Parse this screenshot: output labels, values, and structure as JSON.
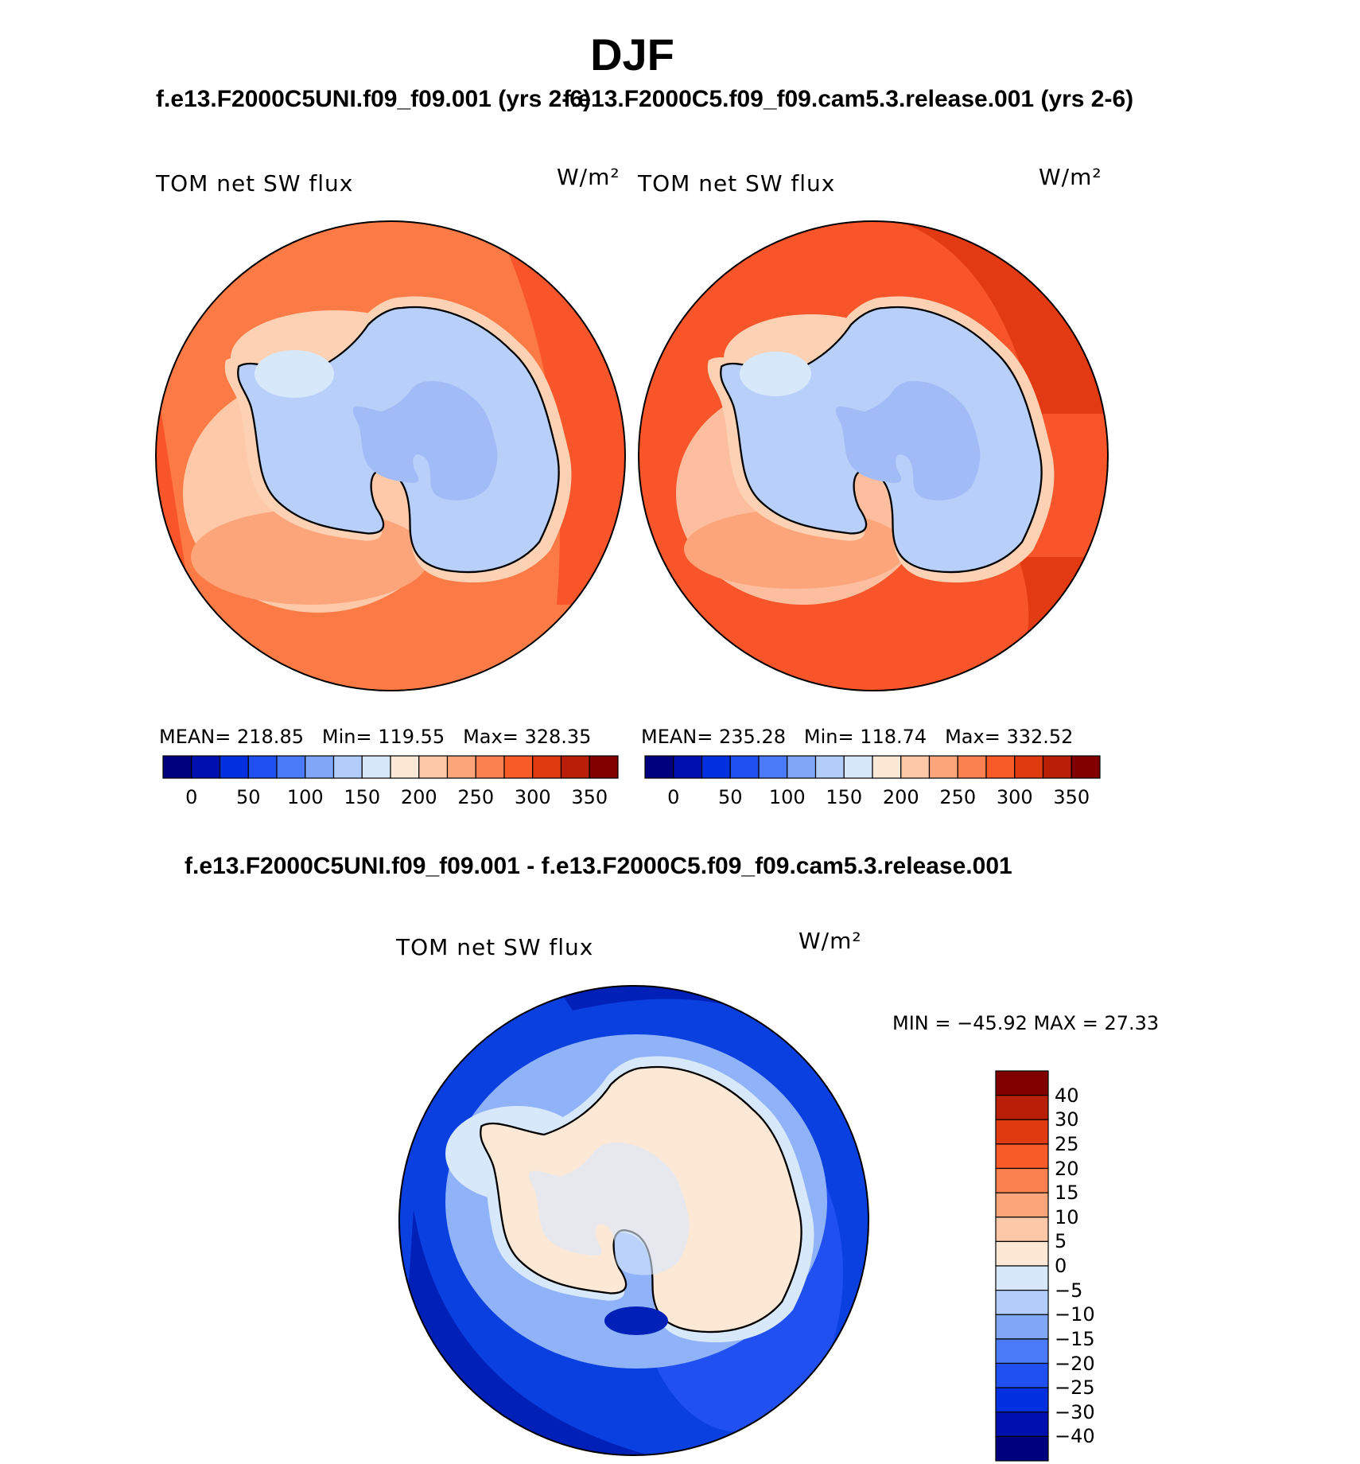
{
  "season_title": "DJF",
  "panels": [
    {
      "case": "f.e13.F2000C5UNI.f09_f09.001 (yrs 2-6)",
      "variable": "TOM net SW flux",
      "units": "W/m²",
      "mean_label": "MEAN=",
      "mean": "218.85",
      "min_label": "Min=",
      "min": "119.55",
      "max_label": "Max=",
      "max": "328.35"
    },
    {
      "case": "f.e13.F2000C5.f09_f09.cam5.3.release.001 (yrs 2-6)",
      "variable": "TOM net SW flux",
      "units": "W/m²",
      "mean_label": "MEAN=",
      "mean": "235.28",
      "min_label": "Min=",
      "min": "118.74",
      "max_label": "Max=",
      "max": "332.52"
    }
  ],
  "difference": {
    "title": "f.e13.F2000C5UNI.f09_f09.001 - f.e13.F2000C5.f09_f09.cam5.3.release.001",
    "variable": "TOM net SW flux",
    "units": "W/m²",
    "minmax_text": "MIN = −45.92 MAX =  27.33"
  },
  "colorbar_abs": {
    "ticks": [
      "0",
      "50",
      "100",
      "150",
      "200",
      "250",
      "300",
      "350"
    ],
    "colors": [
      "#00007f",
      "#0010b0",
      "#0030e0",
      "#2050f0",
      "#4a7af5",
      "#80a6f8",
      "#b3cdfa",
      "#d8e8fb",
      "#fde8d6",
      "#fdc8a8",
      "#fca47a",
      "#fb8050",
      "#f85a28",
      "#e03a10",
      "#b81e08",
      "#800000"
    ]
  },
  "colorbar_diff": {
    "labels": [
      "40",
      "30",
      "25",
      "20",
      "15",
      "10",
      "5",
      "0",
      "−5",
      "−10",
      "−15",
      "−20",
      "−25",
      "−30",
      "−40"
    ],
    "colors": [
      "#800000",
      "#b81e08",
      "#e03a10",
      "#f85a28",
      "#fb8050",
      "#fca47a",
      "#fdc8a8",
      "#fde8d6",
      "#d8e8fb",
      "#b3cdfa",
      "#80a6f8",
      "#4a7af5",
      "#2050f0",
      "#0030e0",
      "#0010b0",
      "#00007f"
    ]
  },
  "map_colors": {
    "ocean_a": "#fb7a45",
    "ocean_b": "#f9552a",
    "ocean_b_dark": "#e23a12",
    "shelf_light": "#fdd1b4",
    "shelf_mid": "#fca47a",
    "ice_light": "#d8e8fb",
    "ice": "#b8cffa",
    "ice_dark": "#a0bbf6",
    "diff_ocean": "#0a3fe0",
    "diff_ocean_dark": "#0020b8",
    "diff_ocean_mid": "#2050f0",
    "diff_shelf": "#8fb2f8",
    "diff_land": "#fde8d6",
    "diff_land_b": "#d8e8fb"
  }
}
